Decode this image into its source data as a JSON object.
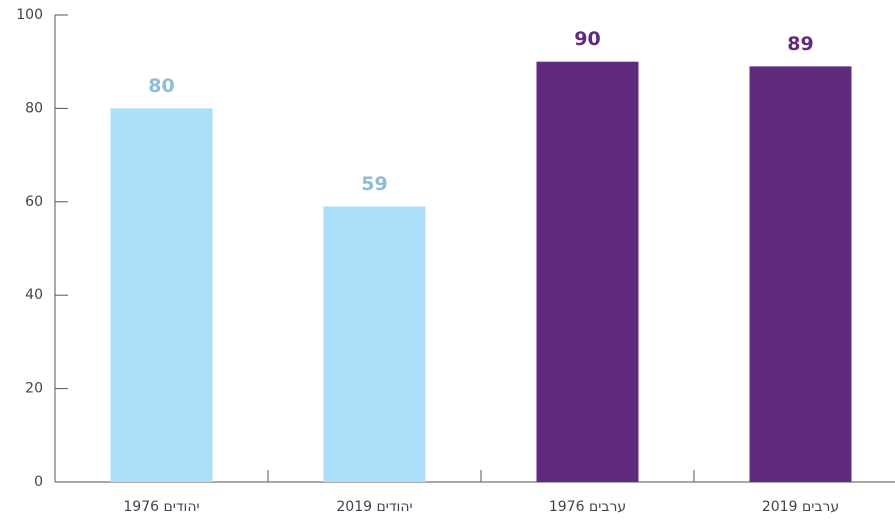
{
  "chart_data": {
    "type": "bar",
    "categories": [
      "יהודים 1976",
      "יהודים 2019",
      "ערבים 1976",
      "ערבים 2019"
    ],
    "values": [
      80,
      59,
      90,
      89
    ],
    "colors": [
      "#abdff9",
      "#abdff9",
      "#622a7d",
      "#622a7d"
    ],
    "label_colors": [
      "#8dbdd5",
      "#8dbdd5",
      "#622a7d",
      "#622a7d"
    ],
    "ylim": [
      0,
      100
    ],
    "yticks": [
      0,
      20,
      40,
      60,
      80,
      100
    ],
    "grid": false
  }
}
